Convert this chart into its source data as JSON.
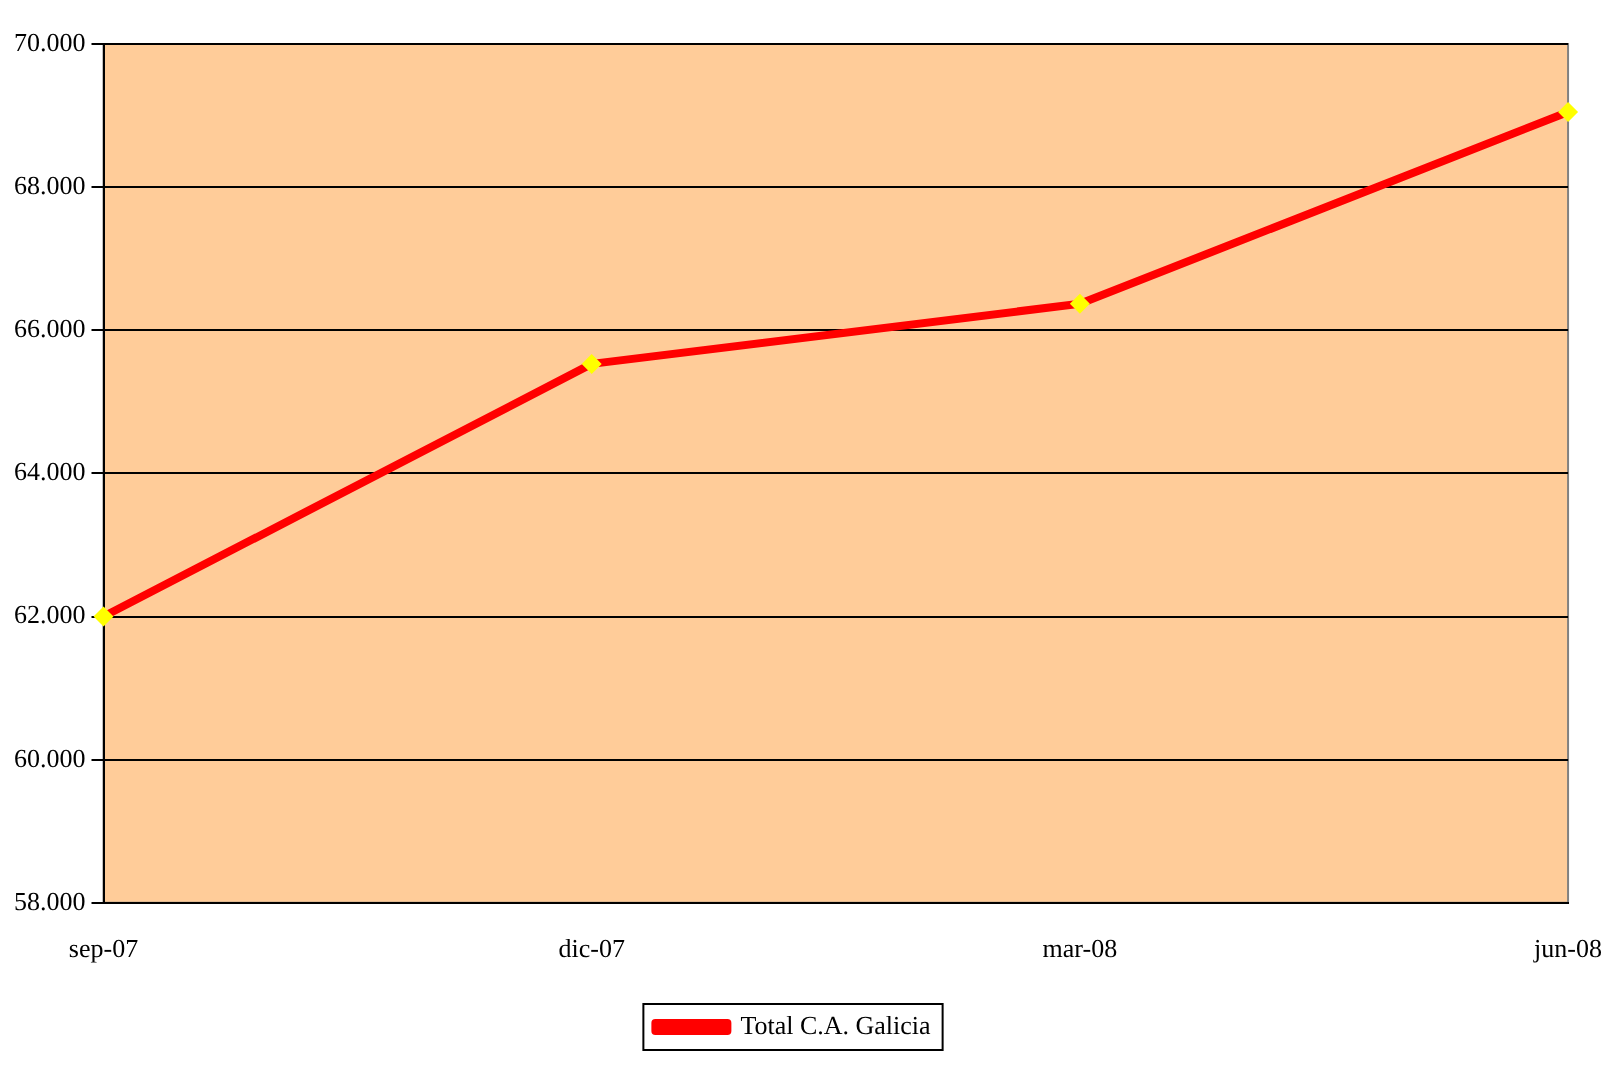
{
  "chart_data": {
    "type": "line",
    "categories": [
      "sep-07",
      "dic-07",
      "mar-08",
      "jun-08"
    ],
    "series": [
      {
        "name": "Total C.A. Galicia",
        "color": "#ff0000",
        "values": [
          62000,
          65530,
          66370,
          69050
        ]
      }
    ],
    "ylim": [
      58000,
      70000
    ],
    "yticks": [
      {
        "value": 58000,
        "label": "58.000"
      },
      {
        "value": 60000,
        "label": "60.000"
      },
      {
        "value": 62000,
        "label": "62.000"
      },
      {
        "value": 64000,
        "label": "64.000"
      },
      {
        "value": 66000,
        "label": "66.000"
      },
      {
        "value": 68000,
        "label": "68.000"
      },
      {
        "value": 70000,
        "label": "70.000"
      }
    ],
    "grid": "y",
    "legend": "bottom",
    "marker": "diamond",
    "line_style": "solid"
  }
}
